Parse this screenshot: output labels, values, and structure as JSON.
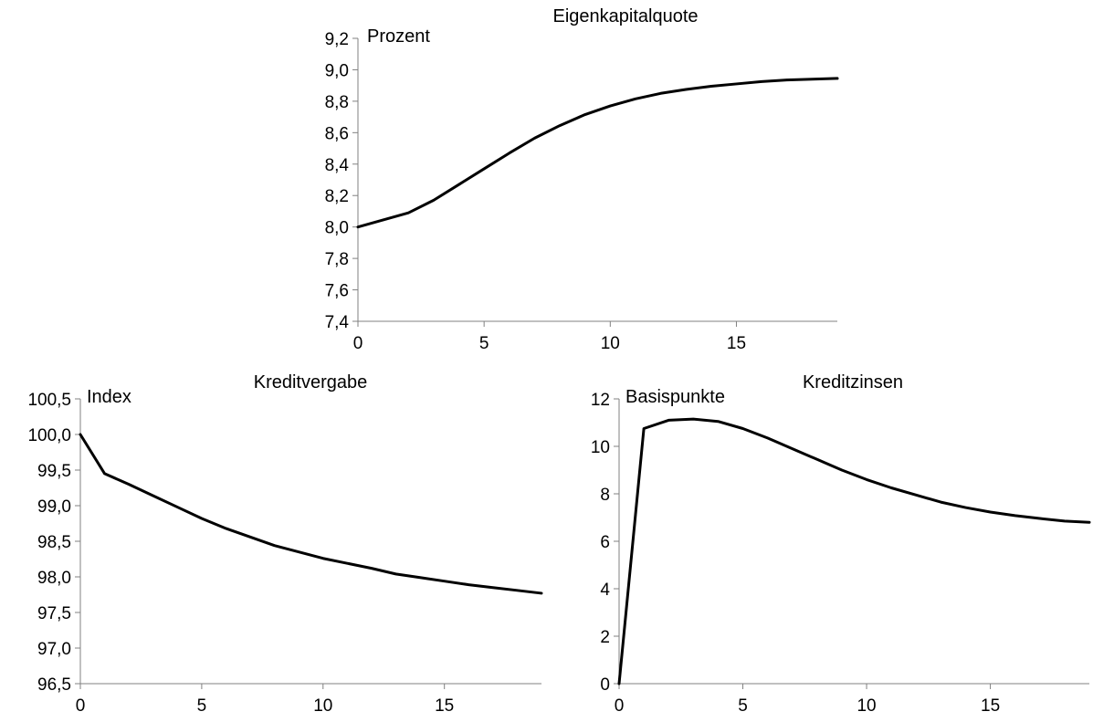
{
  "chart_data": [
    {
      "type": "line",
      "title": "Eigenkapitalquote",
      "unit_label": "Prozent",
      "xlabel": "",
      "ylabel": "",
      "xlim": [
        0,
        19
      ],
      "ylim": [
        7.4,
        9.2
      ],
      "xticks": [
        0,
        5,
        10,
        15
      ],
      "yticks": [
        7.4,
        7.6,
        7.8,
        8.0,
        8.2,
        8.4,
        8.6,
        8.8,
        9.0,
        9.2
      ],
      "ytick_labels": [
        "7,4",
        "7,6",
        "7,8",
        "8,0",
        "8,2",
        "8,4",
        "8,6",
        "8,8",
        "9,0",
        "9,2"
      ],
      "xtick_labels": [
        "0",
        "5",
        "10",
        "15"
      ],
      "grid": false,
      "legend": "none",
      "line_color": "#000000",
      "series": [
        {
          "x": [
            0,
            1,
            2,
            3,
            4,
            5,
            6,
            7,
            8,
            9,
            10,
            11,
            12,
            13,
            14,
            15,
            16,
            17,
            18,
            19
          ],
          "values": [
            8.0,
            8.045,
            8.09,
            8.17,
            8.27,
            8.37,
            8.47,
            8.565,
            8.645,
            8.715,
            8.77,
            8.815,
            8.85,
            8.875,
            8.895,
            8.91,
            8.925,
            8.935,
            8.94,
            8.945
          ]
        }
      ]
    },
    {
      "type": "line",
      "title": "Kreditvergabe",
      "unit_label": "Index",
      "xlabel": "",
      "ylabel": "",
      "xlim": [
        0,
        19
      ],
      "ylim": [
        96.5,
        100.5
      ],
      "xticks": [
        0,
        5,
        10,
        15
      ],
      "yticks": [
        96.5,
        97.0,
        97.5,
        98.0,
        98.5,
        99.0,
        99.5,
        100.0,
        100.5
      ],
      "ytick_labels": [
        "96,5",
        "97,0",
        "97,5",
        "98,0",
        "98,5",
        "99,0",
        "99,5",
        "100,0",
        "100,5"
      ],
      "xtick_labels": [
        "0",
        "5",
        "10",
        "15"
      ],
      "grid": false,
      "legend": "none",
      "line_color": "#000000",
      "series": [
        {
          "x": [
            0,
            1,
            2,
            3,
            4,
            5,
            6,
            7,
            8,
            9,
            10,
            11,
            12,
            13,
            14,
            15,
            16,
            17,
            18,
            19
          ],
          "values": [
            100.0,
            99.45,
            99.3,
            99.14,
            98.98,
            98.82,
            98.68,
            98.56,
            98.44,
            98.35,
            98.26,
            98.19,
            98.12,
            98.04,
            97.99,
            97.94,
            97.89,
            97.85,
            97.81,
            97.77
          ]
        }
      ]
    },
    {
      "type": "line",
      "title": "Kreditzinsen",
      "unit_label": "Basispunkte",
      "xlabel": "",
      "ylabel": "",
      "xlim": [
        0,
        19
      ],
      "ylim": [
        0,
        12
      ],
      "xticks": [
        0,
        5,
        10,
        15
      ],
      "yticks": [
        0,
        2,
        4,
        6,
        8,
        10,
        12
      ],
      "ytick_labels": [
        "0",
        "2",
        "4",
        "6",
        "8",
        "10",
        "12"
      ],
      "xtick_labels": [
        "0",
        "5",
        "10",
        "15"
      ],
      "grid": false,
      "legend": "none",
      "line_color": "#000000",
      "series": [
        {
          "x": [
            0,
            1,
            2,
            3,
            4,
            5,
            6,
            7,
            8,
            9,
            10,
            11,
            12,
            13,
            14,
            15,
            16,
            17,
            18,
            19
          ],
          "values": [
            0,
            10.75,
            11.1,
            11.15,
            11.05,
            10.75,
            10.35,
            9.9,
            9.45,
            9.0,
            8.6,
            8.25,
            7.95,
            7.65,
            7.42,
            7.23,
            7.08,
            6.96,
            6.85,
            6.8
          ]
        }
      ]
    }
  ]
}
